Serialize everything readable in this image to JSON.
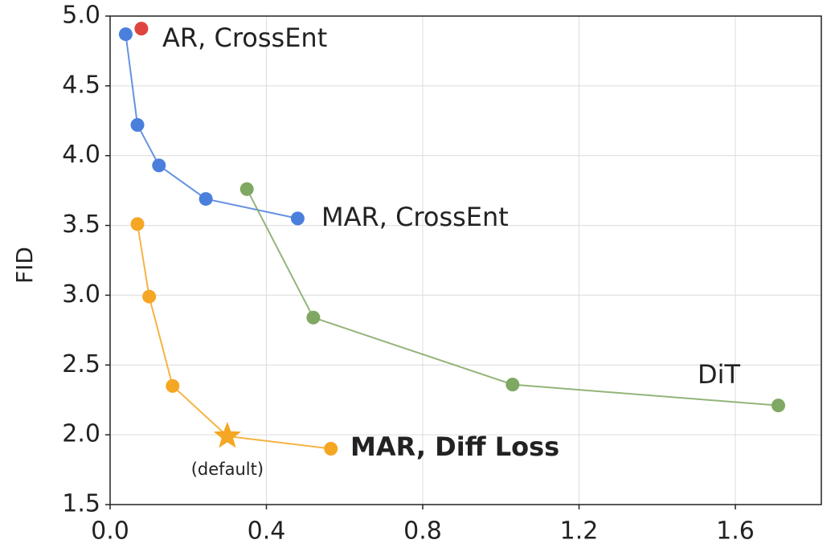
{
  "chart_data": {
    "type": "line",
    "y_label": "FID",
    "xlim": [
      0,
      1.82
    ],
    "ylim": [
      1.5,
      5.0
    ],
    "xticks": [
      {
        "value": 0,
        "label": "0.0"
      },
      0.4,
      0.8,
      1.2,
      1.6
    ],
    "yticks": [
      1.5,
      {
        "value": 2,
        "label": "2.0"
      },
      2.5,
      {
        "value": 3,
        "label": "3.0"
      },
      3.5,
      {
        "value": 4,
        "label": "4.0"
      },
      4.5,
      {
        "value": 5,
        "label": "5.0"
      }
    ],
    "grid": true,
    "series": [
      {
        "name": "AR, CrossEnt",
        "color": "#e0443e",
        "x": [
          0.08
        ],
        "values": [
          4.91
        ]
      },
      {
        "name": "MAR, CrossEnt",
        "color": "#4a7fdc",
        "x": [
          0.04,
          0.07,
          0.125,
          0.245,
          0.48
        ],
        "values": [
          4.87,
          4.22,
          3.93,
          3.69,
          3.55
        ]
      },
      {
        "name": "DiT",
        "color": "#7fa862",
        "x": [
          0.35,
          0.52,
          1.03,
          1.71
        ],
        "values": [
          3.76,
          2.84,
          2.36,
          2.21
        ]
      },
      {
        "name": "MAR, Diff Loss",
        "color": "#f5a623",
        "x": [
          0.07,
          0.1,
          0.16,
          0.3,
          0.565
        ],
        "values": [
          3.51,
          2.99,
          2.35,
          1.99,
          1.9
        ],
        "markers": [
          "circle",
          "circle",
          "circle",
          "star",
          "circle"
        ],
        "annotation": "(default)"
      }
    ]
  }
}
